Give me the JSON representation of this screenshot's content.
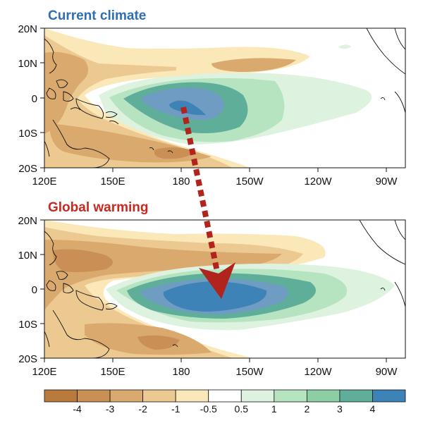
{
  "figure": {
    "panels": [
      {
        "title": "Current climate",
        "title_color": "#2f6eb5",
        "lat_labels": [
          "20N",
          "10N",
          "0",
          "10S",
          "20S"
        ],
        "lon_labels": [
          "120E",
          "150E",
          "180",
          "150W",
          "120W",
          "90W"
        ]
      },
      {
        "title": "Global warming",
        "title_color": "#c62a22",
        "lat_labels": [
          "20N",
          "10N",
          "0",
          "10S",
          "20S"
        ],
        "lon_labels": [
          "120E",
          "150E",
          "180",
          "150W",
          "120W",
          "90W"
        ]
      }
    ],
    "arrow_color": "#b0241d",
    "colorbar": {
      "labels": [
        "-4",
        "-3",
        "-2",
        "-1",
        "-0.5",
        "0.5",
        "1",
        "2",
        "3",
        "4"
      ],
      "colors": [
        "#b97a3e",
        "#c98f54",
        "#d9a96e",
        "#ecc990",
        "#fbe8b8",
        "#ffffff",
        "#ddf3e0",
        "#b6e3c0",
        "#8ccfa5",
        "#5fae9a",
        "#3e83b8"
      ]
    },
    "palette": {
      "brown_dark": "#c98f54",
      "brown_mid": "#d9a96e",
      "tan": "#ecc990",
      "cream": "#fbe8b8",
      "green_light": "#ddf3e0",
      "green_mid": "#b6e3c0",
      "green_dark": "#8ccfa5",
      "teal": "#5fae9a",
      "blue_grey": "#6f9cc2",
      "blue": "#3e83b8"
    }
  }
}
